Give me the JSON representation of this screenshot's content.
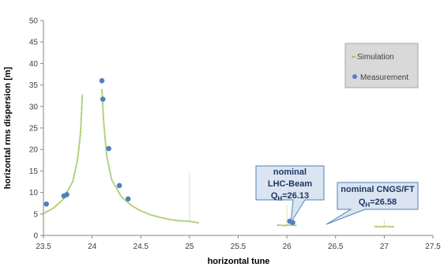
{
  "chart_data": {
    "type": "scatter",
    "xlabel": "horizontal tune",
    "ylabel": "horizontal rms dispersion [m]",
    "xlim": [
      23.5,
      27.5
    ],
    "ylim": [
      0,
      50
    ],
    "xticks": [
      "23.5",
      "24",
      "24.5",
      "25",
      "25.5",
      "26",
      "26.5",
      "27",
      "27.5"
    ],
    "yticks": [
      "0",
      "5",
      "10",
      "15",
      "20",
      "25",
      "30",
      "35",
      "40",
      "45",
      "50"
    ],
    "grid": false,
    "legend_position": "top-right",
    "colors": {
      "simulation": "#8fbc45",
      "measurement": "#4f81bd",
      "callout_fill": "#dbe5f1",
      "callout_border": "#4f81bd",
      "legend_fill": "#d9d9d9"
    },
    "series": [
      {
        "name": "Simulation",
        "style": "dense-line",
        "resonances": [
          24.0,
          25.0,
          26.0,
          27.0
        ],
        "x": [
          23.5,
          23.6,
          23.7,
          23.8,
          23.85,
          23.88,
          23.9,
          24.1,
          24.12,
          24.15,
          24.2,
          24.3,
          24.4,
          24.5,
          24.6,
          24.7,
          24.8,
          24.9,
          24.98,
          25.02,
          25.1,
          25.3,
          25.5,
          25.7,
          25.9,
          25.98,
          26.02,
          26.1,
          26.3,
          26.5,
          26.7,
          26.9,
          26.98,
          27.02,
          27.1,
          27.3,
          27.5
        ],
        "values": [
          5.1,
          6.3,
          8.3,
          12.5,
          17.5,
          23.5,
          32.8,
          34.0,
          26.0,
          18.5,
          13.0,
          9.0,
          7.0,
          5.7,
          4.8,
          4.2,
          3.7,
          3.4,
          3.3,
          3.2,
          2.9,
          2.7,
          2.55,
          2.45,
          2.4,
          2.3,
          2.4,
          2.3,
          2.2,
          2.15,
          2.1,
          2.05,
          2.0,
          2.05,
          2.0,
          1.95,
          1.9
        ]
      },
      {
        "name": "Measurement",
        "style": "points",
        "x": [
          23.53,
          23.71,
          23.74,
          24.1,
          24.11,
          24.17,
          24.28,
          24.37,
          26.03,
          26.06
        ],
        "values": [
          7.3,
          9.2,
          9.5,
          36.0,
          31.7,
          20.2,
          11.6,
          8.5,
          3.3,
          3.0
        ]
      }
    ],
    "annotations": [
      {
        "id": "lhc",
        "lines": [
          "nominal",
          "LHC-Beam"
        ],
        "q_main": "Q",
        "q_sub": "H",
        "q_rest": "=26.13"
      },
      {
        "id": "cngs",
        "lines": [
          "nominal CNGS/FT"
        ],
        "q_main": "Q",
        "q_sub": "H",
        "q_rest": "=26.58"
      }
    ]
  }
}
